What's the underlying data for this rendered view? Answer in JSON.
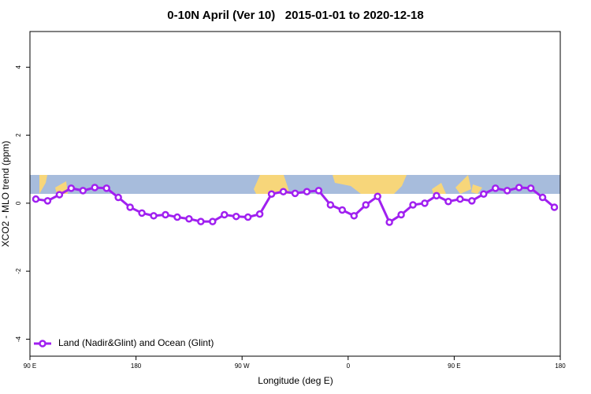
{
  "chart_data": {
    "type": "line",
    "title": "0-10N April (Ver 10)   2015-01-01 to 2020-12-18",
    "xlabel": "Longitude (deg E)",
    "ylabel": "XCO2 - MLO trend (ppm)",
    "x": [
      95,
      105,
      115,
      125,
      135,
      145,
      155,
      165,
      175,
      185,
      195,
      205,
      215,
      225,
      235,
      245,
      255,
      265,
      275,
      285,
      295,
      305,
      315,
      325,
      335,
      345,
      355,
      365,
      375,
      385,
      395,
      405,
      415,
      425,
      435,
      445,
      455,
      465,
      475,
      485,
      495,
      505,
      515,
      525,
      535
    ],
    "series": [
      {
        "name": "Land (Nadir&Glint) and Ocean (Glint)",
        "color": "#a020f0",
        "values": [
          0.12,
          0.07,
          0.25,
          0.44,
          0.37,
          0.46,
          0.44,
          0.17,
          -0.12,
          -0.29,
          -0.37,
          -0.34,
          -0.41,
          -0.46,
          -0.54,
          -0.54,
          -0.34,
          -0.39,
          -0.41,
          -0.32,
          0.27,
          0.34,
          0.29,
          0.34,
          0.37,
          -0.05,
          -0.2,
          -0.37,
          -0.05,
          0.2,
          -0.56,
          -0.34,
          -0.05,
          0,
          0.22,
          0.05,
          0.12,
          0.07,
          0.27,
          0.44,
          0.37,
          0.46,
          0.44,
          0.17,
          -0.12
        ]
      }
    ],
    "xlim": [
      90,
      540
    ],
    "xticks": [
      {
        "value": 90,
        "label": "90 E"
      },
      180,
      {
        "value": 270,
        "label": "90 W"
      },
      {
        "value": 360,
        "label": "0"
      },
      {
        "value": 450,
        "label": "90 E"
      },
      {
        "value": 540,
        "label": "180"
      }
    ],
    "ylim": [
      -4.5,
      5.05
    ],
    "yticks": [
      -4,
      -2,
      0,
      2,
      4
    ],
    "legend": "bottom-left"
  }
}
